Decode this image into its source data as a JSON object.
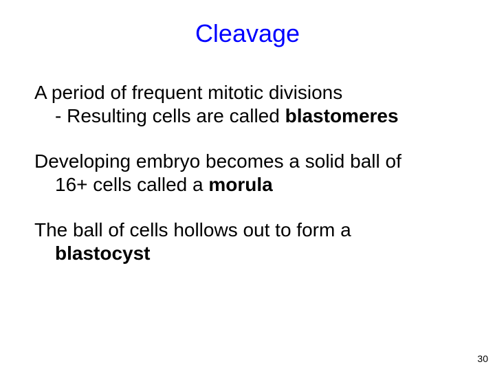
{
  "slide": {
    "title": {
      "text": "Cleavage",
      "color": "#0000ff",
      "fontSize": 36
    },
    "body": {
      "color": "#000000",
      "fontSize": 28,
      "lineHeight": 34,
      "indentPx": 30,
      "paragraphs": [
        {
          "lines": [
            {
              "indent": false,
              "runs": [
                {
                  "text": "A period of frequent mitotic divisions",
                  "bold": false
                }
              ]
            },
            {
              "indent": true,
              "runs": [
                {
                  "text": "- Resulting cells are called ",
                  "bold": false
                },
                {
                  "text": "blastomeres",
                  "bold": true
                }
              ]
            }
          ]
        },
        {
          "lines": [
            {
              "indent": false,
              "runs": [
                {
                  "text": "Developing embryo becomes a solid ball of",
                  "bold": false
                }
              ]
            },
            {
              "indent": true,
              "runs": [
                {
                  "text": "16+ cells called a ",
                  "bold": false
                },
                {
                  "text": "morula",
                  "bold": true
                }
              ]
            }
          ]
        },
        {
          "lines": [
            {
              "indent": false,
              "runs": [
                {
                  "text": "The ball of cells hollows out to form a",
                  "bold": false
                }
              ]
            },
            {
              "indent": true,
              "runs": [
                {
                  "text": "blastocyst",
                  "bold": true
                }
              ]
            }
          ]
        }
      ]
    },
    "pageNumber": {
      "text": "30",
      "color": "#000000",
      "fontSize": 14
    }
  }
}
